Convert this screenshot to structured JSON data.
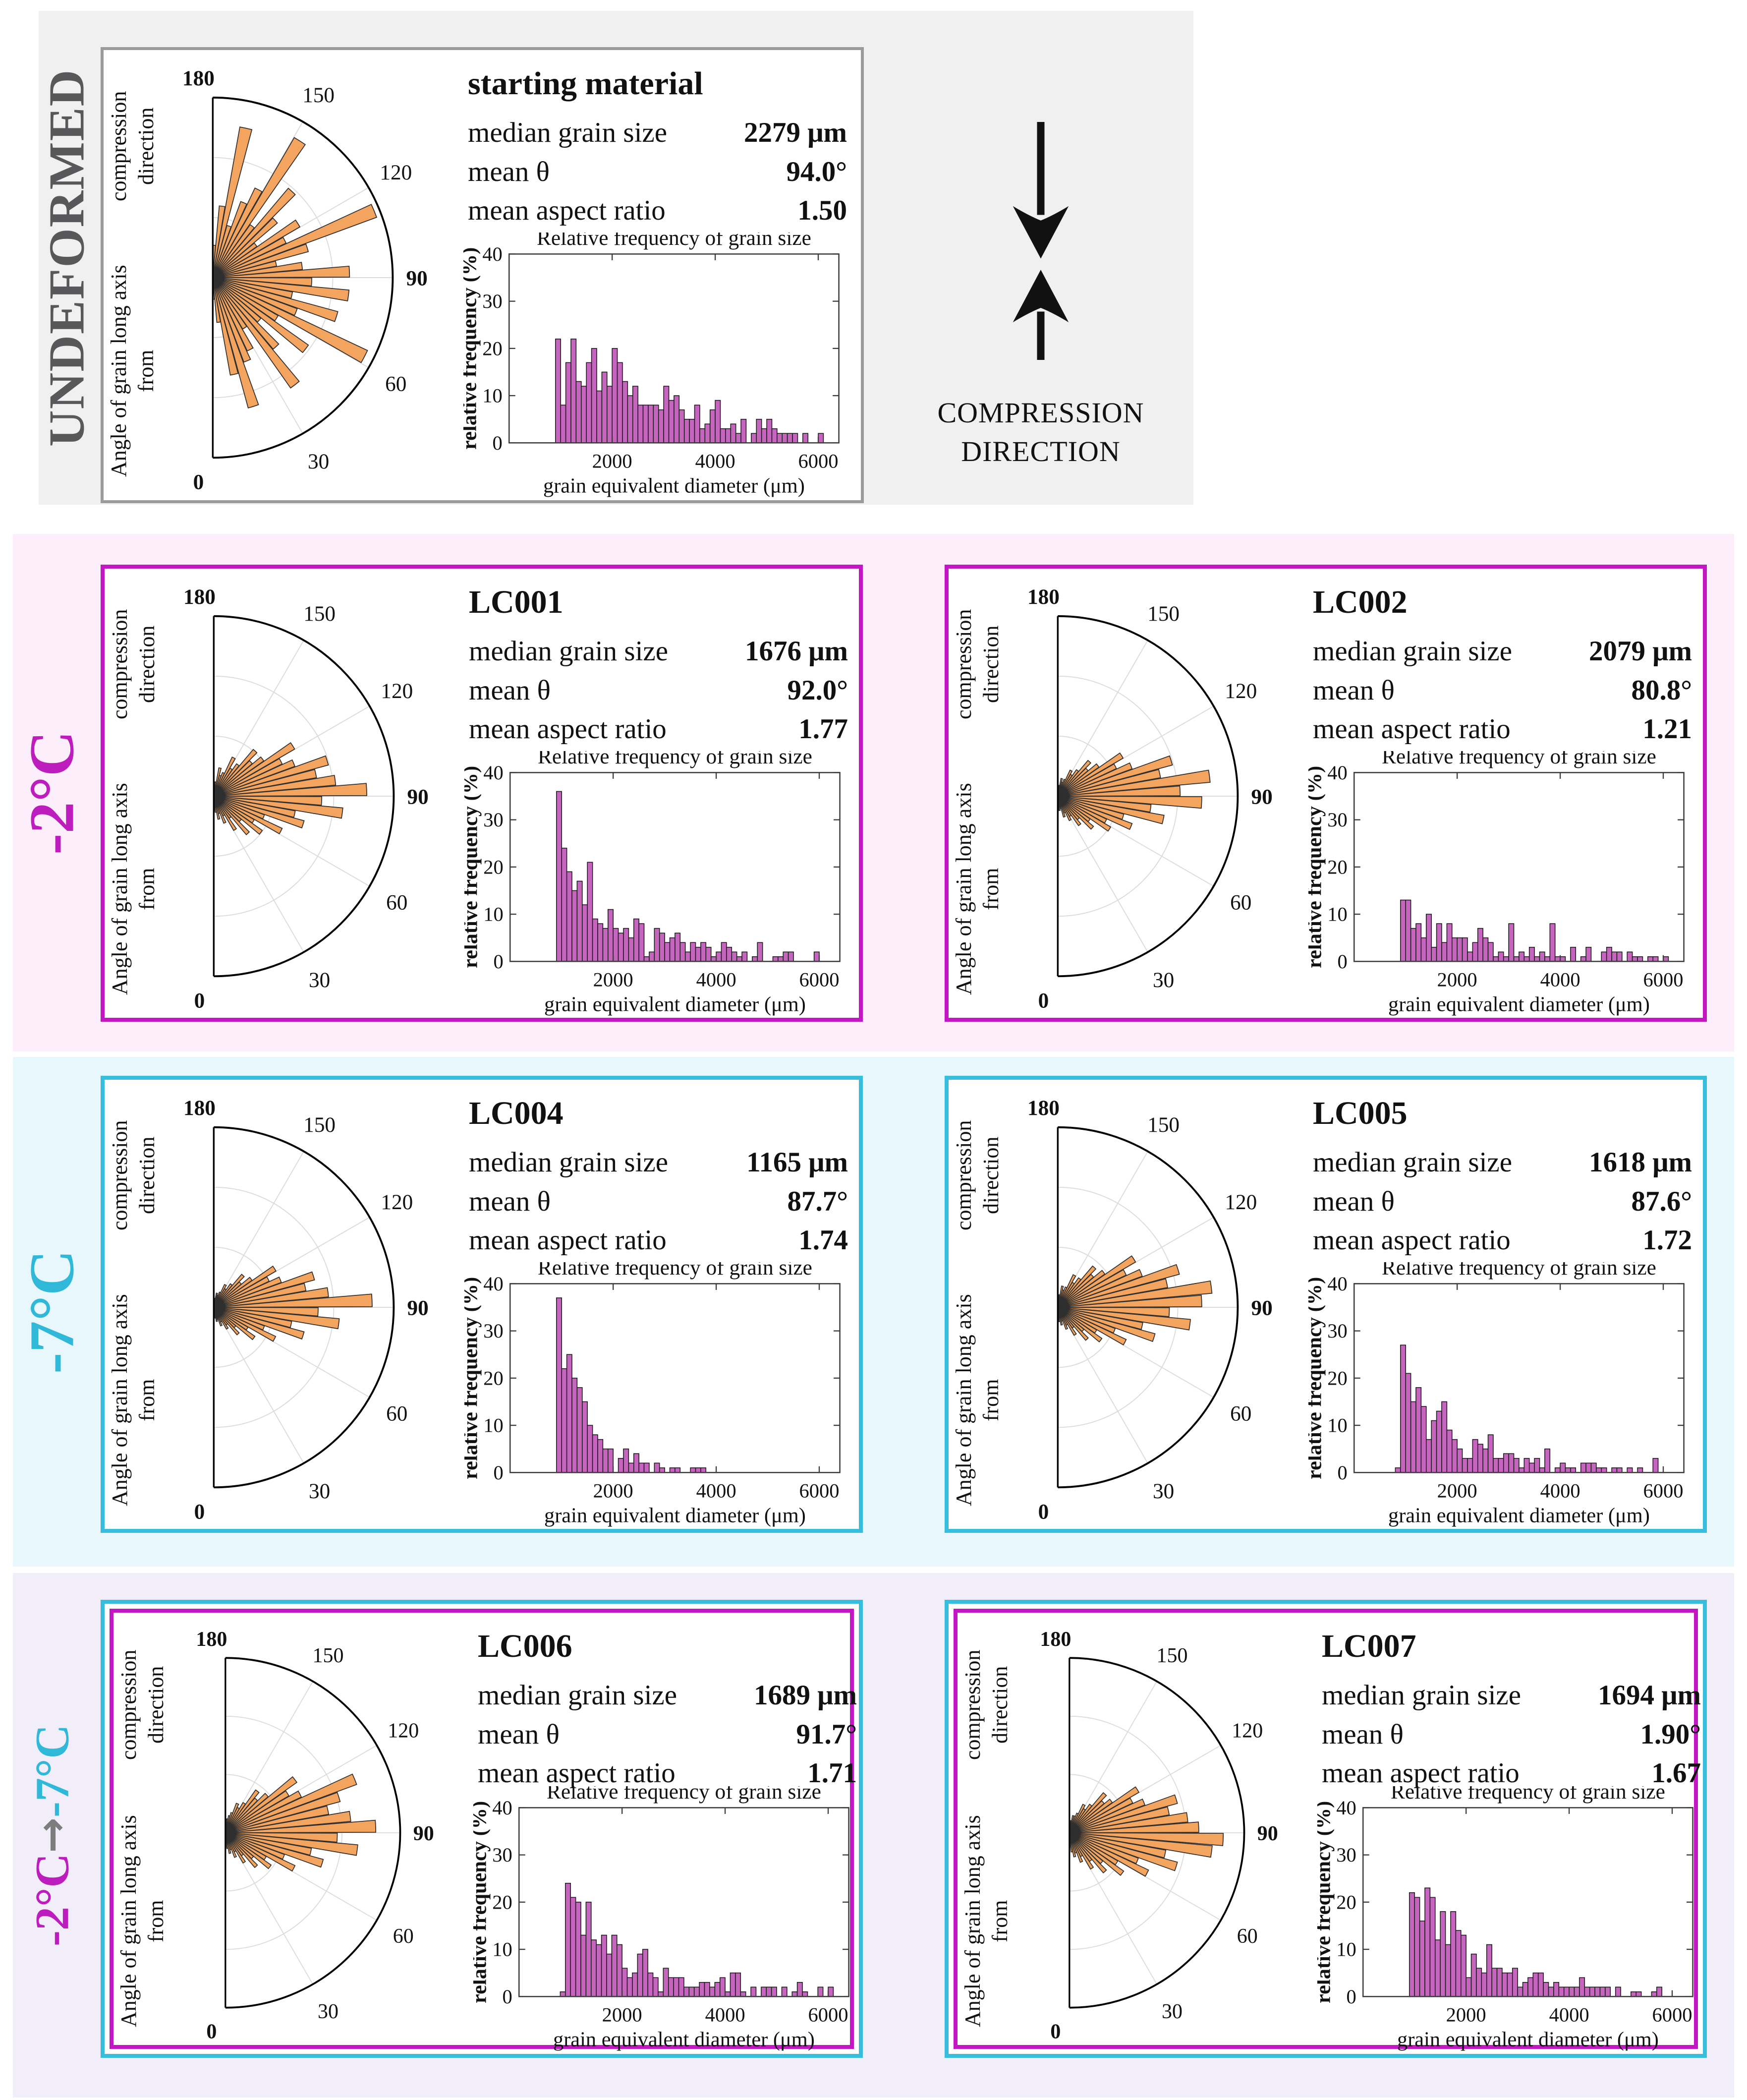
{
  "sections": [
    {
      "label": "UNDEFORMED"
    },
    {
      "label": "-2°C"
    },
    {
      "label": "-7°C"
    },
    {
      "label_from": "-2°C",
      "label_arrow": "→",
      "label_to": "-7°C"
    }
  ],
  "compression": {
    "line1": "COMPRESSION",
    "line2": "DIRECTION"
  },
  "rose_axis": {
    "line1": "Angle of grain long axis from",
    "line2": "compression direction",
    "tick_labels": [
      "0",
      "30",
      "60",
      "90",
      "120",
      "150",
      "180"
    ]
  },
  "stats_labels": {
    "median": "median grain size",
    "theta": "mean θ",
    "aspect": "mean aspect ratio"
  },
  "panels": [
    {
      "title": "starting material",
      "median": "2279 μm",
      "theta": "94.0°",
      "aspect": "1.50"
    },
    {
      "title": "LC001",
      "median": "1676 μm",
      "theta": "92.0°",
      "aspect": "1.77"
    },
    {
      "title": "LC002",
      "median": "2079 μm",
      "theta": "80.8°",
      "aspect": "1.21"
    },
    {
      "title": "LC004",
      "median": "1165 μm",
      "theta": "87.7°",
      "aspect": "1.74"
    },
    {
      "title": "LC005",
      "median": "1618 μm",
      "theta": "87.6°",
      "aspect": "1.72"
    },
    {
      "title": "LC006",
      "median": "1689 μm",
      "theta": "91.7°",
      "aspect": "1.71"
    },
    {
      "title": "LC007",
      "median": "1694 μm",
      "theta": "1.90°",
      "aspect": "1.67"
    }
  ],
  "colors": {
    "orange": "#f3a45f",
    "purple": "#c565be",
    "magenta_border": "#c317c3",
    "cyan_border": "#36bedc",
    "gray_label": "#58585a",
    "arrow_gray": "#7d7d7d"
  },
  "chart_data": {
    "shared_axes": {
      "histogram": {
        "type": "bar",
        "title": "Relative frequency of grain size",
        "xlabel": "grain equivalent diameter (μm)",
        "ylabel": "relative frequency (%)",
        "xlim": [
          0,
          6400
        ],
        "ylim": [
          0,
          40
        ],
        "xticks": [
          2000,
          4000,
          6000
        ],
        "yticks": [
          0,
          10,
          20,
          30,
          40
        ],
        "grid": false
      },
      "rose": {
        "type": "polar-bar",
        "angle_start_deg": 0,
        "angle_end_deg": 180,
        "bin_width_deg": 5,
        "angle_tick_labels_deg": [
          0,
          30,
          60,
          90,
          120,
          150,
          180
        ],
        "note": "half-circle rose diagram, 0 at bottom, 90 pointing right, 180 at top; radii are relative to outer circle"
      }
    },
    "panels": [
      {
        "name": "starting material",
        "rose_radii": [
          0.12,
          0.25,
          0.55,
          0.75,
          0.5,
          0.45,
          0.33,
          0.75,
          0.52,
          0.35,
          0.65,
          0.42,
          0.95,
          0.5,
          0.72,
          0.45,
          0.76,
          0.55,
          0.76,
          0.5,
          0.36,
          0.55,
          0.97,
          0.45,
          0.56,
          0.3,
          0.47,
          0.65,
          0.36,
          0.9,
          0.55,
          0.45,
          0.3,
          0.85,
          0.4,
          0.18
        ],
        "histogram": {
          "bin_start_um": 900,
          "bin_width_um": 100,
          "values_percent": [
            22,
            8,
            17,
            22,
            13,
            12,
            17,
            20,
            11,
            15,
            12,
            20,
            17,
            13,
            10,
            12,
            8,
            8,
            8,
            8,
            7,
            12,
            9,
            10,
            7,
            5,
            5,
            8,
            3,
            4,
            7,
            9,
            3,
            3,
            4,
            2,
            5,
            0,
            2,
            5,
            3,
            5,
            3,
            2,
            2,
            2,
            2,
            0,
            2,
            0,
            0,
            2
          ]
        }
      },
      {
        "name": "LC001",
        "rose_radii": [
          0.06,
          0.09,
          0.13,
          0.1,
          0.16,
          0.12,
          0.22,
          0.15,
          0.28,
          0.2,
          0.33,
          0.26,
          0.42,
          0.3,
          0.52,
          0.46,
          0.72,
          0.6,
          0.85,
          0.68,
          0.58,
          0.66,
          0.48,
          0.42,
          0.52,
          0.34,
          0.28,
          0.34,
          0.22,
          0.18,
          0.24,
          0.14,
          0.12,
          0.16,
          0.08,
          0.06
        ],
        "histogram": {
          "bin_start_um": 900,
          "bin_width_um": 100,
          "values_percent": [
            36,
            24,
            19,
            15,
            17,
            12,
            21,
            9,
            8,
            7,
            11,
            7,
            6,
            7,
            5,
            9,
            8,
            1,
            2,
            7,
            6,
            4,
            5,
            6,
            4,
            2,
            4,
            3,
            4,
            3,
            1,
            2,
            4,
            3,
            2,
            1,
            2,
            0,
            1,
            4,
            0,
            0,
            1,
            1,
            2,
            2,
            0,
            0,
            0,
            0,
            2
          ]
        }
      },
      {
        "name": "LC002",
        "rose_radii": [
          0.05,
          0.08,
          0.07,
          0.12,
          0.1,
          0.15,
          0.13,
          0.2,
          0.17,
          0.26,
          0.22,
          0.34,
          0.3,
          0.44,
          0.38,
          0.6,
          0.52,
          0.8,
          0.68,
          0.85,
          0.58,
          0.66,
          0.44,
          0.36,
          0.42,
          0.28,
          0.22,
          0.26,
          0.18,
          0.14,
          0.16,
          0.1,
          0.08,
          0.1,
          0.06,
          0.05
        ],
        "histogram": {
          "bin_start_um": 900,
          "bin_width_um": 100,
          "values_percent": [
            13,
            13,
            7,
            8,
            5,
            10,
            3,
            8,
            4,
            8,
            5,
            5,
            5,
            2,
            4,
            7,
            5,
            4,
            1,
            2,
            1,
            8,
            1,
            2,
            1,
            3,
            1,
            2,
            1,
            8,
            1,
            1,
            0,
            3,
            0,
            1,
            3,
            0,
            0,
            2,
            3,
            2,
            2,
            0,
            2,
            1,
            1,
            0,
            1,
            1,
            0,
            1
          ]
        }
      },
      {
        "name": "LC004",
        "rose_radii": [
          0.04,
          0.06,
          0.08,
          0.07,
          0.11,
          0.09,
          0.14,
          0.12,
          0.2,
          0.16,
          0.28,
          0.22,
          0.38,
          0.3,
          0.52,
          0.44,
          0.7,
          0.58,
          0.88,
          0.64,
          0.52,
          0.58,
          0.4,
          0.34,
          0.4,
          0.26,
          0.2,
          0.24,
          0.16,
          0.12,
          0.14,
          0.09,
          0.07,
          0.08,
          0.05,
          0.04
        ],
        "histogram": {
          "bin_start_um": 900,
          "bin_width_um": 100,
          "values_percent": [
            37,
            22,
            25,
            20,
            18,
            15,
            10,
            8,
            7,
            5,
            5,
            0,
            3,
            5,
            2,
            4,
            2,
            2,
            0,
            2,
            1,
            0,
            1,
            1,
            0,
            0,
            1,
            1,
            1
          ]
        }
      },
      {
        "name": "LC005",
        "rose_radii": [
          0.05,
          0.08,
          0.1,
          0.08,
          0.13,
          0.11,
          0.18,
          0.14,
          0.24,
          0.19,
          0.3,
          0.25,
          0.42,
          0.34,
          0.56,
          0.48,
          0.74,
          0.62,
          0.8,
          0.86,
          0.62,
          0.7,
          0.5,
          0.42,
          0.5,
          0.32,
          0.26,
          0.3,
          0.2,
          0.16,
          0.2,
          0.12,
          0.1,
          0.12,
          0.07,
          0.05
        ],
        "histogram": {
          "bin_start_um": 800,
          "bin_width_um": 100,
          "values_percent": [
            1,
            27,
            21,
            15,
            18,
            14,
            7,
            11,
            13,
            15,
            9,
            7,
            5,
            3,
            3,
            7,
            6,
            5,
            8,
            3,
            3,
            4,
            4,
            3,
            1,
            3,
            2,
            3,
            1,
            5,
            0,
            1,
            2,
            1,
            1,
            0,
            2,
            2,
            2,
            1,
            1,
            0,
            1,
            1,
            0,
            1,
            0,
            1,
            0,
            0,
            3
          ]
        }
      },
      {
        "name": "LC006",
        "rose_radii": [
          0.06,
          0.09,
          0.12,
          0.1,
          0.15,
          0.12,
          0.2,
          0.16,
          0.26,
          0.21,
          0.32,
          0.27,
          0.44,
          0.36,
          0.58,
          0.5,
          0.76,
          0.64,
          0.86,
          0.72,
          0.6,
          0.68,
          0.8,
          0.48,
          0.42,
          0.5,
          0.32,
          0.26,
          0.3,
          0.2,
          0.16,
          0.18,
          0.12,
          0.1,
          0.08,
          0.06
        ],
        "histogram": {
          "bin_start_um": 800,
          "bin_width_um": 100,
          "values_percent": [
            1,
            24,
            21,
            20,
            13,
            20,
            12,
            11,
            13,
            9,
            13,
            11,
            6,
            4,
            5,
            9,
            10,
            5,
            4,
            1,
            6,
            4,
            4,
            4,
            2,
            2,
            2,
            3,
            3,
            2,
            3,
            4,
            1,
            5,
            5,
            1,
            0,
            2,
            0,
            2,
            2,
            2,
            0,
            2,
            0,
            1,
            3,
            1,
            0,
            0,
            2,
            0,
            2
          ]
        }
      },
      {
        "name": "LC007",
        "rose_radii": [
          0.08,
          0.11,
          0.14,
          0.12,
          0.18,
          0.15,
          0.24,
          0.2,
          0.3,
          0.25,
          0.38,
          0.32,
          0.5,
          0.42,
          0.64,
          0.56,
          0.82,
          0.88,
          0.74,
          0.68,
          0.58,
          0.64,
          0.46,
          0.4,
          0.46,
          0.3,
          0.26,
          0.3,
          0.2,
          0.16,
          0.18,
          0.12,
          0.1,
          0.1,
          0.07,
          0.06
        ],
        "histogram": {
          "bin_start_um": 900,
          "bin_width_um": 100,
          "values_percent": [
            22,
            21,
            16,
            23,
            21,
            12,
            18,
            11,
            18,
            14,
            13,
            4,
            9,
            6,
            5,
            11,
            6,
            6,
            5,
            5,
            6,
            2,
            3,
            4,
            5,
            5,
            3,
            2,
            3,
            2,
            2,
            2,
            2,
            4,
            2,
            2,
            2,
            2,
            2,
            0,
            2,
            0,
            0,
            1,
            1,
            0,
            0,
            1,
            2
          ]
        }
      }
    ]
  }
}
